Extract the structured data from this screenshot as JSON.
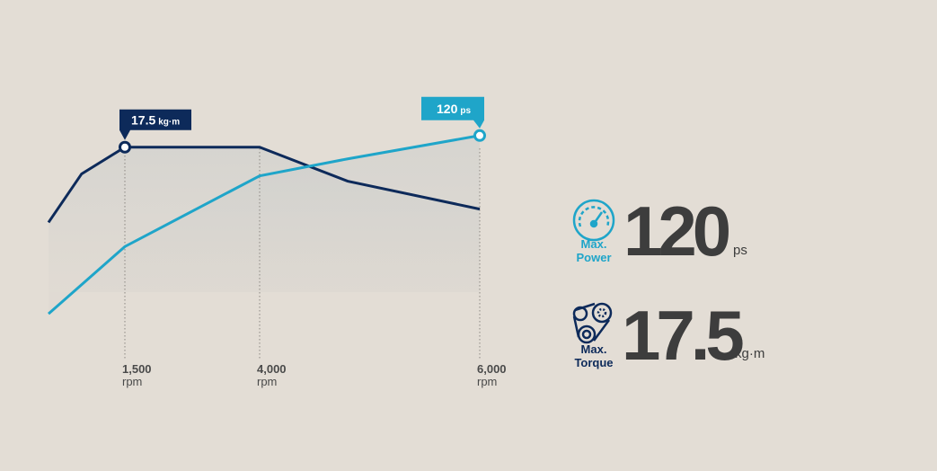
{
  "chart_data": {
    "type": "line",
    "x_unit": "rpm",
    "xlim": [
      0,
      6000
    ],
    "xticks": [
      {
        "value": 1500,
        "label": "1,500"
      },
      {
        "value": 4000,
        "label": "4,000"
      },
      {
        "value": 6000,
        "label": "6,000"
      }
    ],
    "ylim": [
      0,
      20
    ],
    "y2lim": [
      0,
      130
    ],
    "series": [
      {
        "color": "#0d2a5a",
        "unit": "kg·m",
        "x": [
          0,
          650,
          1500,
          4000,
          4800,
          6000
        ],
        "values": [
          11.3,
          15.3,
          17.5,
          17.5,
          14.7,
          12.4
        ]
      },
      {
        "color": "#1fa5c9",
        "unit": "ps",
        "axis": "y2",
        "x": [
          0,
          1500,
          4000,
          4800,
          6000
        ],
        "values": [
          24.5,
          60.5,
          98.4,
          107.5,
          120
        ]
      }
    ],
    "peaks": [
      {
        "series": 0,
        "point": 2
      },
      {
        "series": 1,
        "point": 4
      }
    ]
  },
  "specs": [
    {
      "label": [
        "Max.",
        "Power"
      ],
      "value": 120,
      "unit": "ps",
      "color": "#1fa5c9"
    },
    {
      "label": [
        "Max.",
        "Torque"
      ],
      "value": 17.5,
      "unit": "kg·m",
      "color": "#0d2a5a"
    }
  ]
}
